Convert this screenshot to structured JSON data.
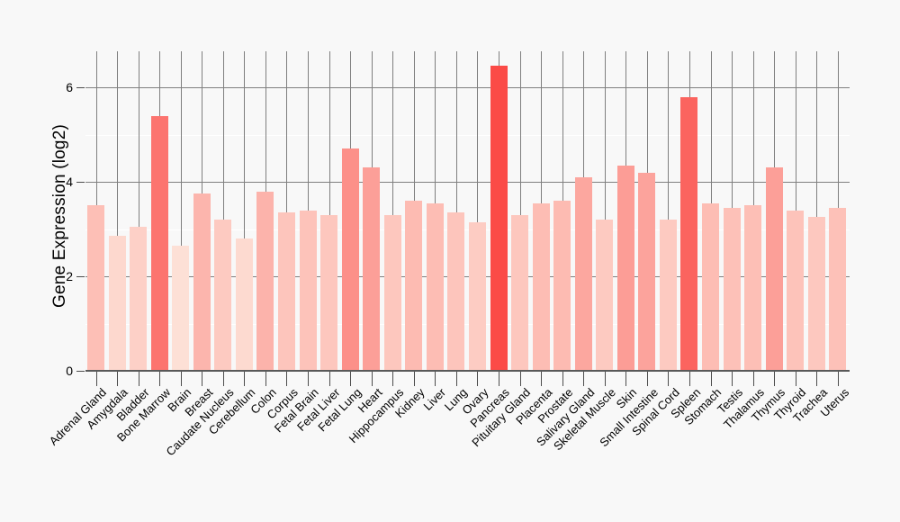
{
  "chart_data": {
    "type": "bar",
    "title": "",
    "xlabel": "",
    "ylabel": "Gene Expression (log2)",
    "categories": [
      "Adrenal Gland",
      "Amygdala",
      "Bladder",
      "Bone Marrow",
      "Brain",
      "Breast",
      "Caudate Nucleus",
      "Cerebellum",
      "Colon",
      "Corpus",
      "Fetal Brain",
      "Fetal Liver",
      "Fetal Lung",
      "Heart",
      "Hippocampus",
      "Kidney",
      "Liver",
      "Lung",
      "Ovary",
      "Pancreas",
      "Pituitary Gland",
      "Placenta",
      "Prostate",
      "Salivary Gland",
      "Skeletal Muscle",
      "Skin",
      "Small Intestine",
      "Spinal Cord",
      "Spleen",
      "Stomach",
      "Testis",
      "Thalamus",
      "Thymus",
      "Thyroid",
      "Trachea",
      "Uterus"
    ],
    "values": [
      3.5,
      2.85,
      3.05,
      5.4,
      2.65,
      3.75,
      3.2,
      2.8,
      3.8,
      3.35,
      3.4,
      3.3,
      4.7,
      4.3,
      3.3,
      3.6,
      3.55,
      3.35,
      3.15,
      6.45,
      3.3,
      3.55,
      3.6,
      4.1,
      3.2,
      4.35,
      4.2,
      3.2,
      5.8,
      3.55,
      3.45,
      3.5,
      4.3,
      3.4,
      3.25,
      3.45
    ],
    "yticks": [
      0,
      2,
      4,
      6
    ],
    "minor_yticks": [
      1,
      3,
      5
    ],
    "ylim": [
      0,
      6.76
    ],
    "grid": "vertical major line at every category; horizontal major lines at even values; horizontal minor white lines at odd values; grid behind bars",
    "legend": "none",
    "color_scale": {
      "type": "linear-by-value",
      "min_value": 2.65,
      "max_value": 6.45,
      "light_color": "#fde0d6",
      "dark_color": "#fb4b47"
    },
    "colors": {
      "background": "#f8f8f8",
      "grid_major": "#7f7f7f",
      "grid_minor": "#ffffff",
      "axis_line": "#595959",
      "tick": "#4d4d4d",
      "text": "#000000"
    }
  }
}
